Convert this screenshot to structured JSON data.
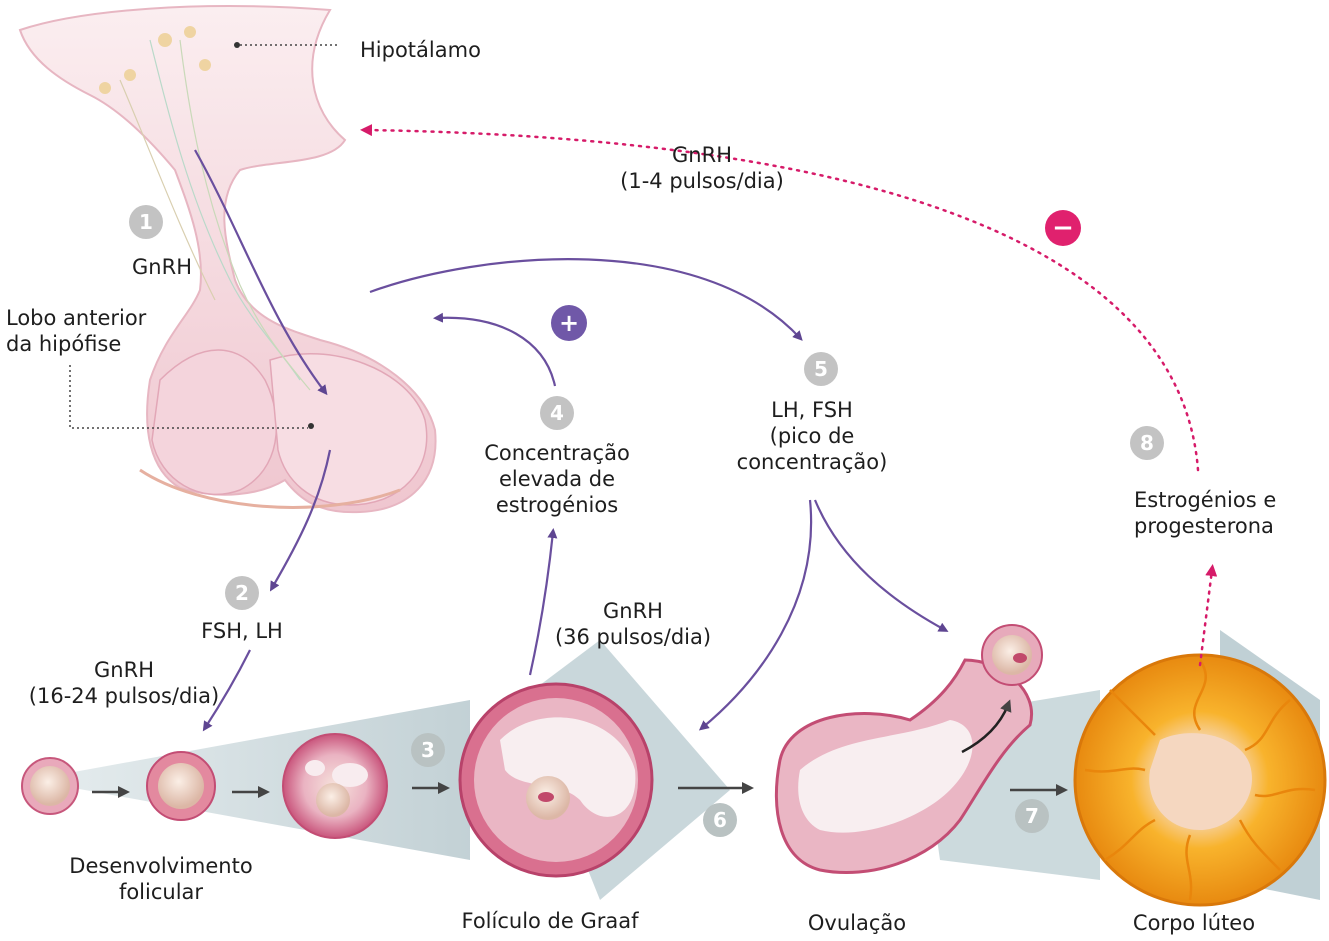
{
  "labels": {
    "hipotalamo": "Hipotálamo",
    "gnrh_top": "GnRH",
    "gnrh_top_rate": "(1-4 pulsos/dia)",
    "gnrh_1": "GnRH",
    "lobo_line1": "Lobo anterior",
    "lobo_line2": "da hipófise",
    "conc_line1": "Concentração",
    "conc_line2": "elevada de",
    "conc_line3": "estrogénios",
    "lhfsh_line1": "LH, FSH",
    "lhfsh_line2": "(pico de",
    "lhfsh_line3": "concentração)",
    "estro_line1": "Estrogénios e",
    "estro_line2": "progesterona",
    "fshlh": "FSH, LH",
    "gnrh_2": "GnRH",
    "gnrh_2_rate": "(16-24 pulsos/dia)",
    "gnrh_3": "GnRH",
    "gnrh_3_rate": "(36 pulsos/dia)",
    "desenv_line1": "Desenvolvimento",
    "desenv_line2": "folicular",
    "foliculo": "Folículo de Graaf",
    "ovulacao": "Ovulação",
    "corpo": "Corpo lúteo"
  },
  "badges": {
    "b1": "1",
    "b2": "2",
    "b3": "3",
    "b4": "4",
    "b5": "5",
    "b6": "6",
    "b7": "7",
    "b8": "8",
    "plus": "+",
    "minus": "−"
  },
  "colors": {
    "purple_arrow": "#6a4f9e",
    "pink_dotted": "#d61b69",
    "tissue": "#f0c8d2",
    "tissue_dark": "#d4789a",
    "corpus_yellow": "#f5a623",
    "band": "#c5d4d8"
  }
}
